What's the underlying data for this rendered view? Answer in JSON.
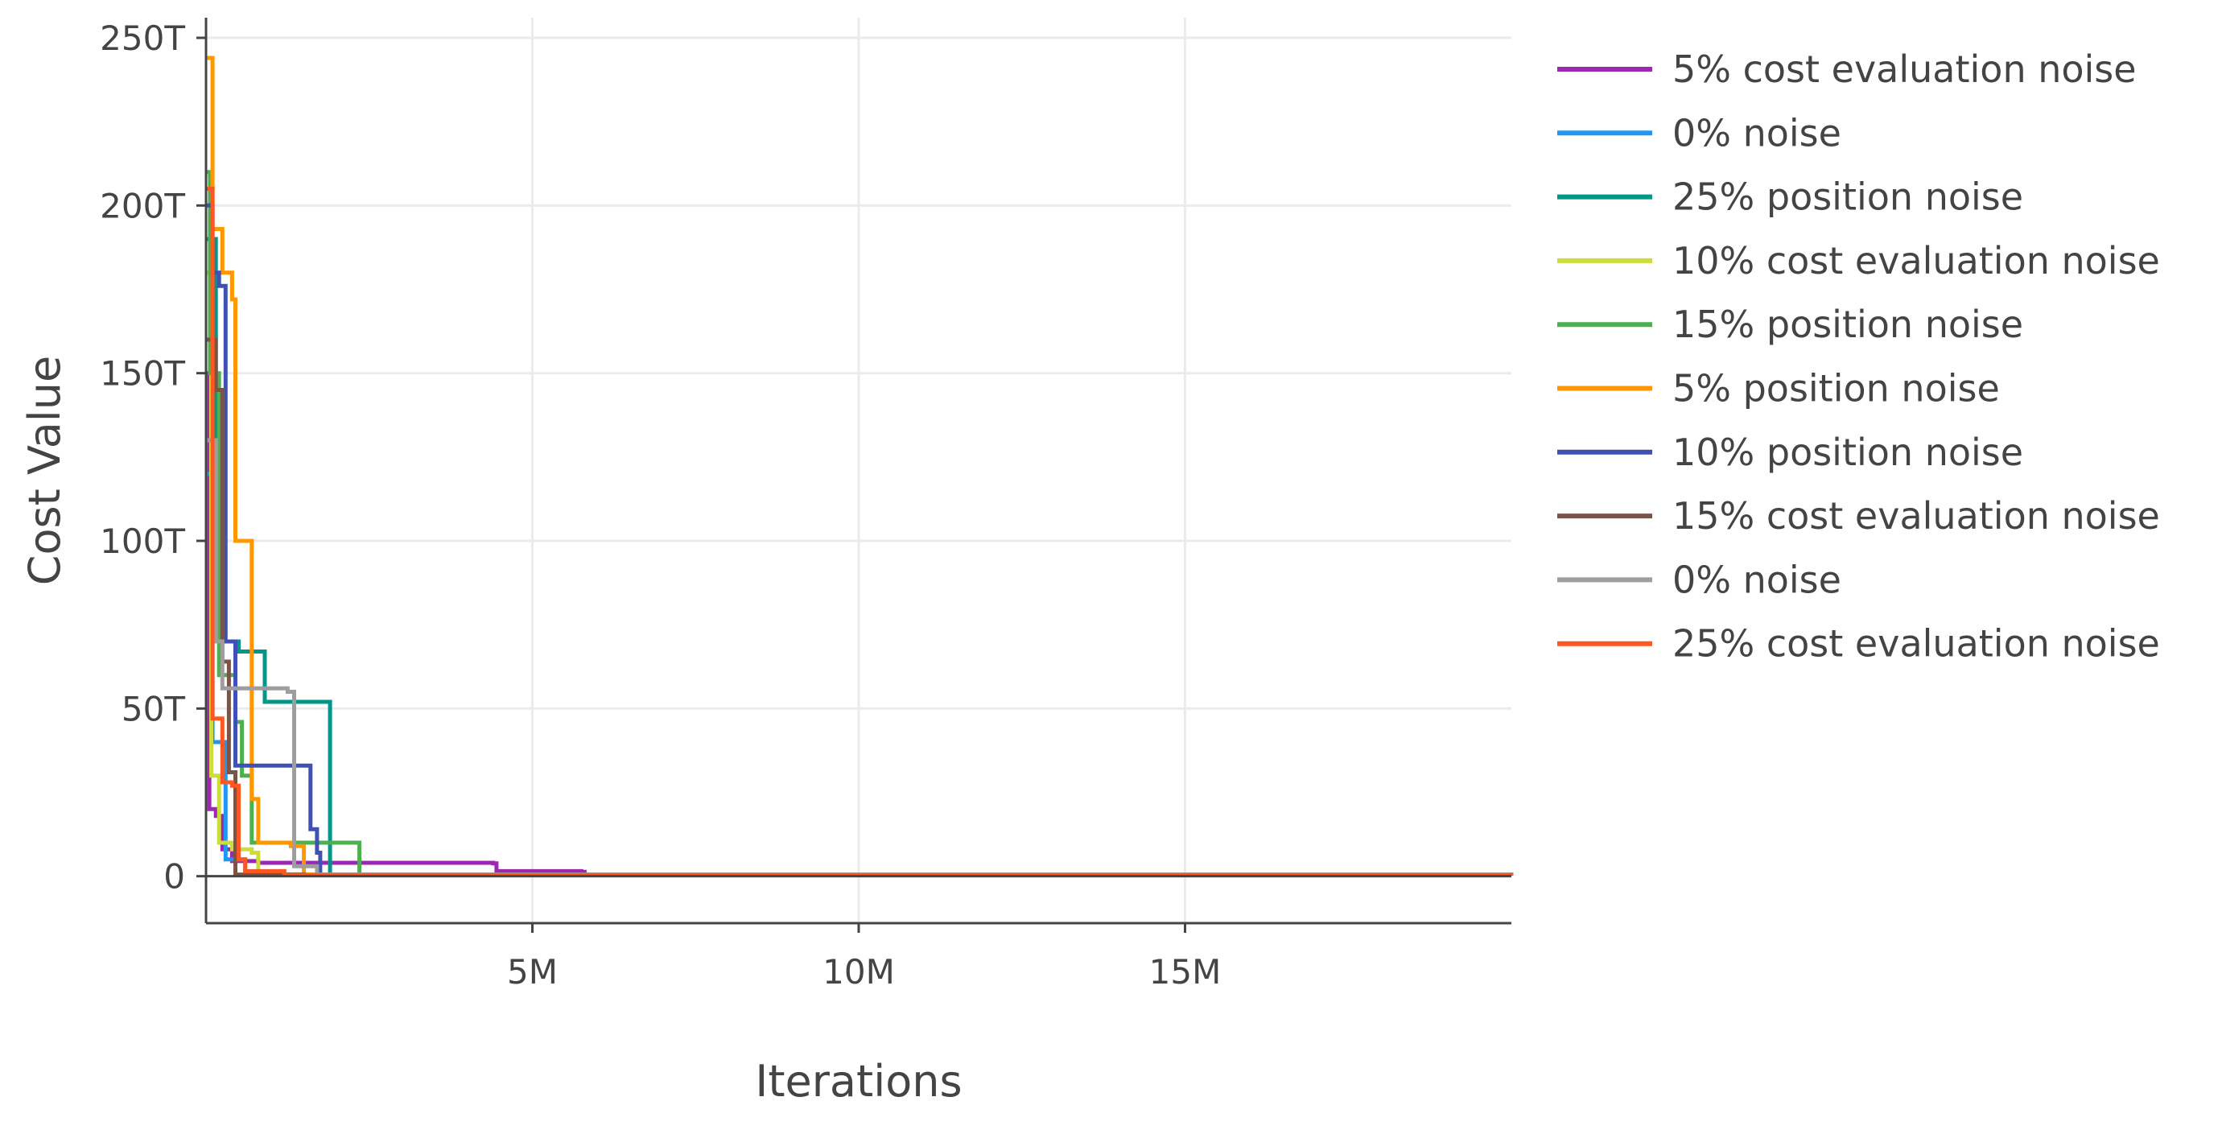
{
  "chart_data": {
    "type": "line",
    "title": "",
    "xlabel": "Iterations",
    "ylabel": "Cost Value",
    "xlim": [
      0,
      20000000
    ],
    "ylim": [
      -14000000000000,
      256000000000000
    ],
    "xticks": [
      {
        "value": 5000000,
        "label": "5M"
      },
      {
        "value": 10000000,
        "label": "10M"
      },
      {
        "value": 15000000,
        "label": "15M"
      }
    ],
    "yticks": [
      {
        "value": 0,
        "label": "0"
      },
      {
        "value": 50000000000000,
        "label": "50T"
      },
      {
        "value": 100000000000000,
        "label": "100T"
      },
      {
        "value": 150000000000000,
        "label": "150T"
      },
      {
        "value": 200000000000000,
        "label": "200T"
      },
      {
        "value": 250000000000000,
        "label": "250T"
      }
    ],
    "grid": true,
    "legend_position": "right",
    "step_lines": true,
    "series": [
      {
        "name": "5% cost evaluation noise",
        "color": "#9C27B0",
        "x": [
          0,
          50000,
          150000,
          250000,
          400000,
          800000,
          4400000,
          4450000,
          5750000,
          5800000,
          20000000
        ],
        "y": [
          150000000000000,
          20000000000000,
          18000000000000,
          8000000000000,
          4500000000000,
          4000000000000,
          3800000000000,
          1500000000000,
          1300000000000,
          300000000000,
          200000000000
        ]
      },
      {
        "name": "0% noise",
        "color": "#2196F3",
        "x": [
          0,
          100000,
          300000,
          600000,
          20000000
        ],
        "y": [
          120000000000000,
          40000000000000,
          5000000000000,
          300000000000,
          200000000000
        ]
      },
      {
        "name": "25% position noise",
        "color": "#009688",
        "x": [
          0,
          150000,
          500000,
          900000,
          1850000,
          1900000,
          20000000
        ],
        "y": [
          190000000000000,
          70000000000000,
          67000000000000,
          52000000000000,
          52000000000000,
          500000000000,
          300000000000
        ]
      },
      {
        "name": "10% cost evaluation noise",
        "color": "#CDDC39",
        "x": [
          0,
          80000,
          200000,
          400000,
          700000,
          800000,
          20000000
        ],
        "y": [
          180000000000000,
          30000000000000,
          10000000000000,
          8000000000000,
          7000000000000,
          500000000000,
          300000000000
        ]
      },
      {
        "name": "15% position noise",
        "color": "#4CAF50",
        "x": [
          0,
          60000,
          200000,
          450000,
          550000,
          700000,
          2300000,
          2350000,
          20000000
        ],
        "y": [
          210000000000000,
          150000000000000,
          60000000000000,
          46000000000000,
          30000000000000,
          10000000000000,
          10000000000000,
          500000000000,
          300000000000
        ]
      },
      {
        "name": "5% position noise",
        "color": "#FF9800",
        "x": [
          0,
          100000,
          250000,
          400000,
          450000,
          700000,
          800000,
          1300000,
          1500000,
          20000000
        ],
        "y": [
          244000000000000,
          193000000000000,
          180000000000000,
          172000000000000,
          100000000000000,
          23000000000000,
          10000000000000,
          9000000000000,
          500000000000,
          300000000000
        ]
      },
      {
        "name": "10% position noise",
        "color": "#3F51B5",
        "x": [
          0,
          100000,
          200000,
          300000,
          450000,
          1550000,
          1600000,
          1700000,
          1750000,
          20000000
        ],
        "y": [
          200000000000000,
          180000000000000,
          176000000000000,
          70000000000000,
          33000000000000,
          33000000000000,
          14000000000000,
          7000000000000,
          500000000000,
          300000000000
        ]
      },
      {
        "name": "15% cost evaluation noise",
        "color": "#795548",
        "x": [
          0,
          150000,
          250000,
          350000,
          450000,
          1500000,
          20000000
        ],
        "y": [
          160000000000000,
          145000000000000,
          64000000000000,
          31000000000000,
          500000000000,
          300000000000,
          200000000000
        ]
      },
      {
        "name": "0% noise",
        "color": "#9E9E9E",
        "x": [
          0,
          150000,
          250000,
          1250000,
          1350000,
          1700000,
          20000000
        ],
        "y": [
          130000000000000,
          70000000000000,
          56000000000000,
          55000000000000,
          3000000000000,
          500000000000,
          300000000000
        ]
      },
      {
        "name": "25% cost evaluation noise",
        "color": "#FF5722",
        "x": [
          0,
          100000,
          250000,
          400000,
          500000,
          600000,
          1200000,
          20000000
        ],
        "y": [
          205000000000000,
          47000000000000,
          28000000000000,
          27000000000000,
          5000000000000,
          1500000000000,
          300000000000,
          200000000000
        ]
      }
    ]
  }
}
